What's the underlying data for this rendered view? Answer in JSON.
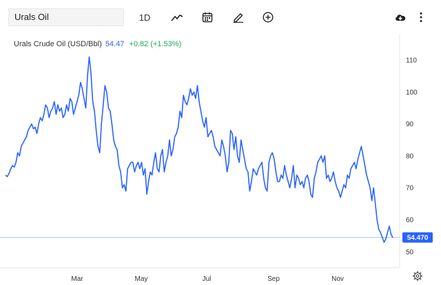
{
  "toolbar": {
    "symbol_value": "Urals Oil",
    "period_label": "1D",
    "icons": [
      "line-chart-icon",
      "calendar-icon",
      "draw-pencil-icon",
      "add-circle-icon",
      "download-cloud-icon",
      "more-vertical-icon"
    ]
  },
  "legend": {
    "name": "Urals Crude Oil (USD/Bbl)",
    "price": "54.47",
    "change": "+0.82 (+1.53%)"
  },
  "price_label": "54.470",
  "colors": {
    "line": "#2962ff",
    "price_line": "#9fbfff",
    "price_tag": "#2962ff",
    "change_positive": "#22ab52",
    "grid": "#eeeeee"
  },
  "chart_data": {
    "type": "line",
    "title": "Urals Crude Oil (USD/Bbl)",
    "xlabel": "",
    "ylabel": "",
    "x_ticks": [
      "Mar",
      "May",
      "Jul",
      "Sep",
      "Nov"
    ],
    "y_ticks": [
      50,
      60,
      70,
      80,
      90,
      100,
      110
    ],
    "ylim": [
      45,
      118
    ],
    "grid": false,
    "current_value": 54.47,
    "series": [
      {
        "values": [
          74,
          73.5,
          74.5,
          76,
          77,
          76.5,
          78,
          81,
          80,
          83,
          84,
          85,
          86,
          88,
          89,
          90,
          88.5,
          89,
          87,
          90,
          92,
          91,
          93,
          96,
          95,
          92,
          94,
          95,
          97,
          93,
          96,
          94,
          95,
          92,
          93,
          96,
          94,
          98,
          97,
          93,
          95,
          97,
          99,
          103,
          101,
          98,
          95,
          105,
          111,
          106,
          97,
          94,
          88,
          83,
          81,
          90,
          96,
          102,
          100,
          95,
          94,
          90,
          85,
          83,
          82,
          77,
          75,
          70,
          71,
          69,
          76,
          77,
          78,
          78,
          75,
          77,
          78,
          76,
          78,
          74,
          76,
          68,
          72,
          75,
          74,
          78,
          81,
          76,
          75,
          80,
          82,
          75,
          78,
          80,
          85,
          80,
          82,
          86,
          87,
          89,
          94,
          92,
          99,
          97,
          96,
          98,
          101,
          99,
          100,
          98,
          102,
          97,
          94,
          91,
          89,
          92,
          86,
          87,
          88,
          86,
          83,
          82,
          81,
          80,
          85,
          83,
          80,
          75,
          78,
          88,
          87,
          82,
          86,
          80,
          78,
          85,
          82,
          79,
          76,
          75,
          69,
          72,
          76,
          75,
          74,
          76,
          77,
          78,
          73,
          70,
          69,
          78,
          80,
          81,
          79,
          75,
          72,
          72,
          74,
          73,
          77,
          74,
          72,
          70,
          73,
          77,
          70,
          74,
          73,
          71,
          72,
          70,
          73,
          74,
          72,
          68,
          67,
          73,
          75,
          78,
          79,
          80,
          78,
          80,
          73,
          74,
          72,
          73,
          75,
          72,
          70,
          69,
          67,
          69,
          71,
          70,
          74,
          73,
          76,
          77,
          78,
          76,
          79,
          81,
          83,
          80,
          77,
          74,
          72,
          70,
          66,
          70,
          65,
          60,
          57,
          56,
          54.5,
          53,
          54,
          56,
          58,
          55.5,
          54.47
        ]
      }
    ]
  }
}
